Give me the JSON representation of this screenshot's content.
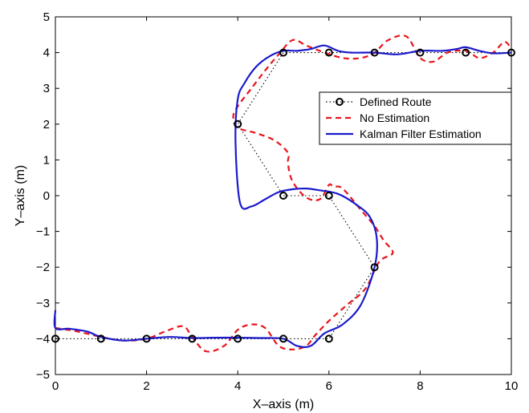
{
  "chart_data": {
    "type": "line",
    "xlabel": "X–axis (m)",
    "ylabel": "Y–axis (m)",
    "xlim": [
      0,
      10
    ],
    "ylim": [
      -5,
      5
    ],
    "xticks": [
      "0",
      "2",
      "4",
      "6",
      "8",
      "10"
    ],
    "yticks": [
      "−5",
      "−4",
      "−3",
      "−2",
      "−1",
      "0",
      "1",
      "2",
      "3",
      "4",
      "5"
    ],
    "xtick_values": [
      0,
      2,
      4,
      6,
      8,
      10
    ],
    "ytick_values": [
      -5,
      -4,
      -3,
      -2,
      -1,
      0,
      1,
      2,
      3,
      4,
      5
    ],
    "grid": false,
    "legend_position": "right",
    "series": [
      {
        "name": "Defined Route",
        "style": "dotted-with-circles",
        "color": "#000000",
        "x": [
          0,
          1,
          2,
          3,
          4,
          5,
          6,
          7,
          6,
          5,
          4,
          5,
          6,
          7,
          8,
          9,
          10
        ],
        "y": [
          -4,
          -4,
          -4,
          -4,
          -4,
          -4,
          -4,
          -2,
          0,
          0,
          2,
          4,
          4,
          4,
          4,
          4,
          4
        ]
      },
      {
        "name": "No Estimation",
        "style": "dashed",
        "color": "#e8141b",
        "x": [
          0,
          0.5,
          1,
          1.5,
          2,
          2.4,
          2.8,
          3.0,
          3.3,
          3.7,
          4.0,
          4.3,
          4.6,
          4.9,
          5.2,
          5.5,
          5.7,
          6.0,
          6.4,
          6.8,
          7.1,
          7.4,
          7.2,
          7.0,
          6.7,
          6.3,
          6.1,
          6.0,
          5.8,
          5.5,
          5.2,
          5.1,
          5.1,
          4.8,
          4.4,
          4.0,
          3.9,
          4.0,
          4.3,
          4.6,
          4.9,
          5.2,
          5.5,
          5.8,
          6.3,
          6.7,
          7.0,
          7.3,
          7.7,
          8.0,
          8.3,
          8.6,
          9.0,
          9.3,
          9.6,
          9.85,
          10.0
        ],
        "y": [
          -3.7,
          -3.8,
          -3.95,
          -4.05,
          -4.0,
          -3.8,
          -3.65,
          -3.95,
          -4.35,
          -4.2,
          -3.75,
          -3.6,
          -3.7,
          -4.2,
          -4.3,
          -4.2,
          -3.9,
          -3.5,
          -3.05,
          -2.6,
          -1.85,
          -1.6,
          -1.25,
          -0.85,
          -0.4,
          0.2,
          0.25,
          0.3,
          -0.1,
          -0.05,
          0.4,
          0.9,
          1.2,
          1.55,
          1.75,
          1.9,
          2.2,
          2.5,
          3.0,
          3.5,
          3.95,
          4.35,
          4.2,
          4.05,
          3.85,
          3.85,
          4.0,
          4.35,
          4.45,
          3.85,
          3.75,
          4.0,
          4.05,
          3.85,
          4.0,
          4.3,
          4.1
        ]
      },
      {
        "name": "Kalman Filter Estimation",
        "style": "solid",
        "color": "#1a1acc",
        "x": [
          0,
          0,
          0.3,
          0.7,
          1.0,
          1.5,
          2.0,
          2.5,
          3.0,
          3.5,
          4.0,
          4.5,
          5.0,
          5.3,
          5.6,
          5.9,
          6.3,
          6.7,
          7.0,
          7.05,
          6.9,
          6.6,
          6.2,
          5.8,
          5.5,
          5.2,
          4.9,
          4.6,
          4.3,
          4.05,
          3.95,
          4.0,
          4.15,
          4.4,
          4.7,
          5.0,
          5.3,
          5.6,
          5.9,
          6.2,
          6.5,
          7.0,
          7.5,
          8.0,
          8.5,
          8.8,
          9.0,
          9.3,
          9.6,
          10.0
        ],
        "y": [
          -3.2,
          -3.7,
          -3.72,
          -3.8,
          -3.95,
          -4.05,
          -4.0,
          -3.95,
          -3.98,
          -3.97,
          -3.97,
          -3.98,
          -4.0,
          -4.2,
          -4.2,
          -3.85,
          -3.6,
          -3.05,
          -2.0,
          -1.2,
          -0.6,
          -0.25,
          0.05,
          0.15,
          0.2,
          0.18,
          0.1,
          -0.1,
          -0.3,
          -0.2,
          1.5,
          2.7,
          3.15,
          3.6,
          3.9,
          4.05,
          4.05,
          4.1,
          4.2,
          4.05,
          4.0,
          4.0,
          3.95,
          4.05,
          4.05,
          4.1,
          4.15,
          4.05,
          3.98,
          4.0
        ]
      }
    ]
  }
}
